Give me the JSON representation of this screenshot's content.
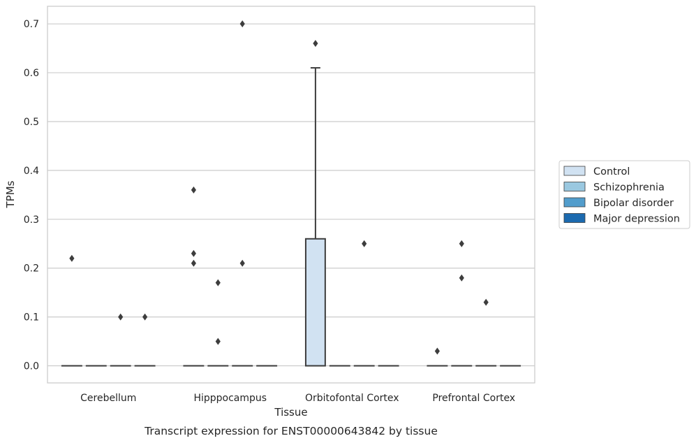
{
  "chart_data": {
    "type": "box",
    "caption": "Transcript expression for ENST00000643842 by tissue",
    "xlabel": "Tissue",
    "ylabel": "TPMs",
    "ylim": [
      -0.035,
      0.736
    ],
    "yticks": [
      0.0,
      0.1,
      0.2,
      0.3,
      0.4,
      0.5,
      0.6,
      0.7
    ],
    "ytick_labels": [
      "0.0",
      "0.1",
      "0.2",
      "0.3",
      "0.4",
      "0.5",
      "0.6",
      "0.7"
    ],
    "grid": "horizontal",
    "legend_position": "right",
    "categories": [
      "Cerebellum",
      "Hipppocampus",
      "Orbitofontal Cortex",
      "Prefrontal Cortex"
    ],
    "series": [
      {
        "name": "Control",
        "color": "#d1e2f2",
        "boxes": [
          {
            "q1": 0,
            "median": 0,
            "q3": 0,
            "whisker_low": 0,
            "whisker_high": 0,
            "outliers": [
              0.22
            ]
          },
          {
            "q1": 0,
            "median": 0,
            "q3": 0,
            "whisker_low": 0,
            "whisker_high": 0,
            "outliers": [
              0.36,
              0.23,
              0.21
            ]
          },
          {
            "q1": 0,
            "median": 0,
            "q3": 0.26,
            "whisker_low": 0,
            "whisker_high": 0.61,
            "outliers": [
              0.66
            ]
          },
          {
            "q1": 0,
            "median": 0,
            "q3": 0,
            "whisker_low": 0,
            "whisker_high": 0,
            "outliers": [
              0.03
            ]
          }
        ]
      },
      {
        "name": "Schizophrenia",
        "color": "#9ac8e0",
        "boxes": [
          {
            "q1": 0,
            "median": 0,
            "q3": 0,
            "whisker_low": 0,
            "whisker_high": 0,
            "outliers": []
          },
          {
            "q1": 0,
            "median": 0,
            "q3": 0,
            "whisker_low": 0,
            "whisker_high": 0,
            "outliers": [
              0.17,
              0.05
            ]
          },
          {
            "q1": 0,
            "median": 0,
            "q3": 0,
            "whisker_low": 0,
            "whisker_high": 0,
            "outliers": []
          },
          {
            "q1": 0,
            "median": 0,
            "q3": 0,
            "whisker_low": 0,
            "whisker_high": 0,
            "outliers": [
              0.25,
              0.18
            ]
          }
        ]
      },
      {
        "name": "Bipolar disorder",
        "color": "#529dcc",
        "boxes": [
          {
            "q1": 0,
            "median": 0,
            "q3": 0,
            "whisker_low": 0,
            "whisker_high": 0,
            "outliers": [
              0.1
            ]
          },
          {
            "q1": 0,
            "median": 0,
            "q3": 0,
            "whisker_low": 0,
            "whisker_high": 0,
            "outliers": [
              0.7,
              0.21
            ]
          },
          {
            "q1": 0,
            "median": 0,
            "q3": 0,
            "whisker_low": 0,
            "whisker_high": 0,
            "outliers": [
              0.25
            ]
          },
          {
            "q1": 0,
            "median": 0,
            "q3": 0,
            "whisker_low": 0,
            "whisker_high": 0,
            "outliers": [
              0.13
            ]
          }
        ]
      },
      {
        "name": "Major depression",
        "color": "#1c6aaf",
        "boxes": [
          {
            "q1": 0,
            "median": 0,
            "q3": 0,
            "whisker_low": 0,
            "whisker_high": 0,
            "outliers": [
              0.1
            ]
          },
          {
            "q1": 0,
            "median": 0,
            "q3": 0,
            "whisker_low": 0,
            "whisker_high": 0,
            "outliers": []
          },
          {
            "q1": 0,
            "median": 0,
            "q3": 0,
            "whisker_low": 0,
            "whisker_high": 0,
            "outliers": []
          },
          {
            "q1": 0,
            "median": 0,
            "q3": 0,
            "whisker_low": 0,
            "whisker_high": 0,
            "outliers": []
          }
        ]
      }
    ]
  },
  "colors": {
    "grid": "#cccccc",
    "frame": "#cccccc",
    "box_edge": "#3d3d3d",
    "text": "#262626"
  }
}
